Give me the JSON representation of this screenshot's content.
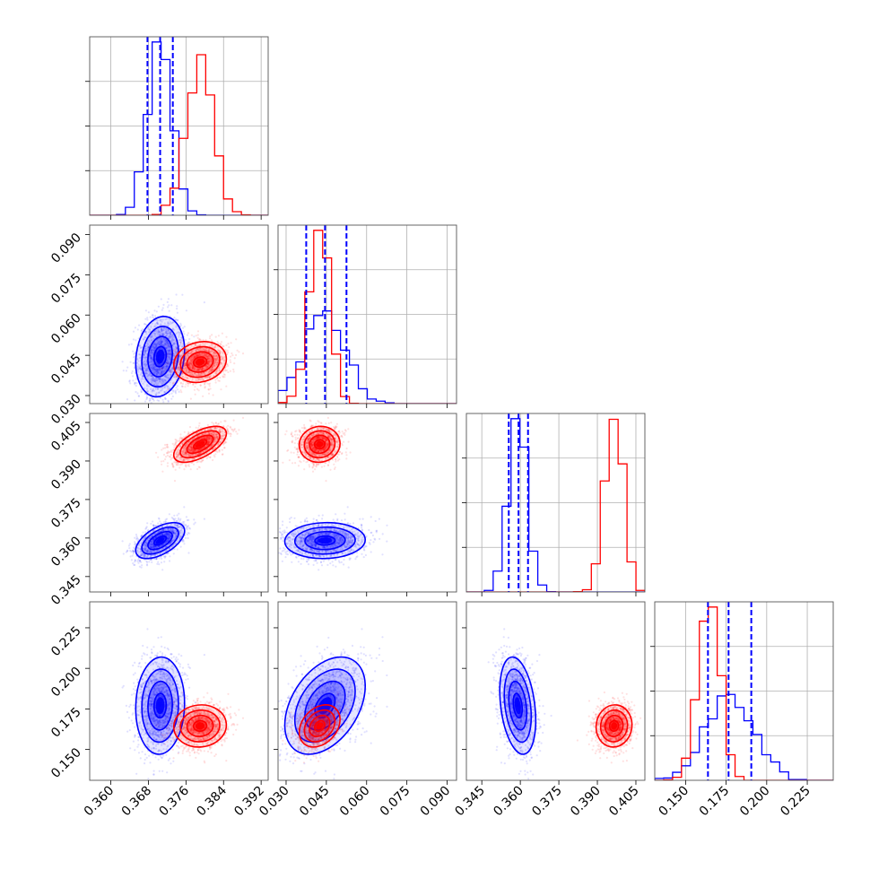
{
  "chart_data": {
    "type": "corner",
    "parameters": [
      {
        "ticks": [
          0.36,
          0.368,
          0.376,
          0.384,
          0.392
        ],
        "tick_labels": [
          "0.360",
          "0.368",
          "0.376",
          "0.384",
          "0.392"
        ],
        "range": [
          0.3555,
          0.3935
        ]
      },
      {
        "ticks": [
          0.03,
          0.045,
          0.06,
          0.075,
          0.09
        ],
        "tick_labels": [
          "0.030",
          "0.045",
          "0.060",
          "0.075",
          "0.090"
        ],
        "range": [
          0.027,
          0.0935
        ]
      },
      {
        "ticks": [
          0.345,
          0.36,
          0.375,
          0.39,
          0.405
        ],
        "tick_labels": [
          "0.345",
          "0.360",
          "0.375",
          "0.390",
          "0.405"
        ],
        "range": [
          0.339,
          0.4085
        ]
      },
      {
        "ticks": [
          0.15,
          0.175,
          0.2,
          0.225
        ],
        "tick_labels": [
          "0.150",
          "0.175",
          "0.200",
          "0.225"
        ],
        "range": [
          0.131,
          0.241
        ]
      }
    ],
    "series": [
      {
        "color": "#0000ff",
        "mean": [
          0.3705,
          0.0445,
          0.359,
          0.177
        ],
        "std": [
          0.0026,
          0.0075,
          0.0035,
          0.015
        ],
        "corr": {
          "0-1": 0.15,
          "0-2": 0.55,
          "0-3": 0.05,
          "1-2": 0.05,
          "1-3": 0.4,
          "2-3": -0.3
        },
        "quantiles": [
          [
            0.3678,
            0.3705,
            0.3732
          ],
          [
            0.0375,
            0.0445,
            0.0525
          ],
          [
            0.3555,
            0.3593,
            0.363
          ],
          [
            0.1638,
            0.1765,
            0.1905
          ]
        ]
      },
      {
        "color": "#ff0000",
        "mean": [
          0.379,
          0.0425,
          0.3965,
          0.1645
        ],
        "std": [
          0.0028,
          0.0038,
          0.0035,
          0.0065
        ],
        "corr": {
          "0-1": 0.15,
          "0-2": 0.6,
          "0-3": 0.05,
          "1-2": 0.05,
          "1-3": 0.3,
          "2-3": 0.05
        },
        "quantiles": []
      }
    ],
    "grid": true
  }
}
